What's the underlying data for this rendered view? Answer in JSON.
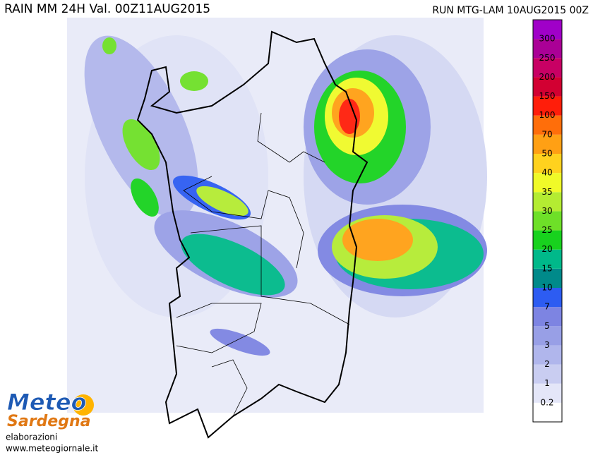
{
  "header": {
    "title": "RAIN MM 24H Val. 00Z11AUG2015",
    "run": "RUN MTG-LAM 10AUG2015 00Z"
  },
  "legend": {
    "levels": [
      0.2,
      1,
      2,
      3,
      5,
      7,
      10,
      15,
      20,
      25,
      30,
      35,
      40,
      50,
      70,
      100,
      150,
      200,
      250,
      300
    ],
    "colors": [
      "#ffffff",
      "#e4e6f8",
      "#c9cdf1",
      "#b0b6ec",
      "#989fe6",
      "#7d84e2",
      "#2d5cf2",
      "#008a8a",
      "#00b98a",
      "#18d21e",
      "#6ee028",
      "#b4ec32",
      "#f0fa28",
      "#ffd21e",
      "#ffa014",
      "#ff6e0a",
      "#ff1e0a",
      "#d20032",
      "#c80064",
      "#aa0096",
      "#a000c8"
    ]
  },
  "logo": {
    "brand_top": "Meteo",
    "brand_bottom": "Sardegna",
    "credit": "elaborazioni",
    "site": "www.meteogiornale.it"
  }
}
